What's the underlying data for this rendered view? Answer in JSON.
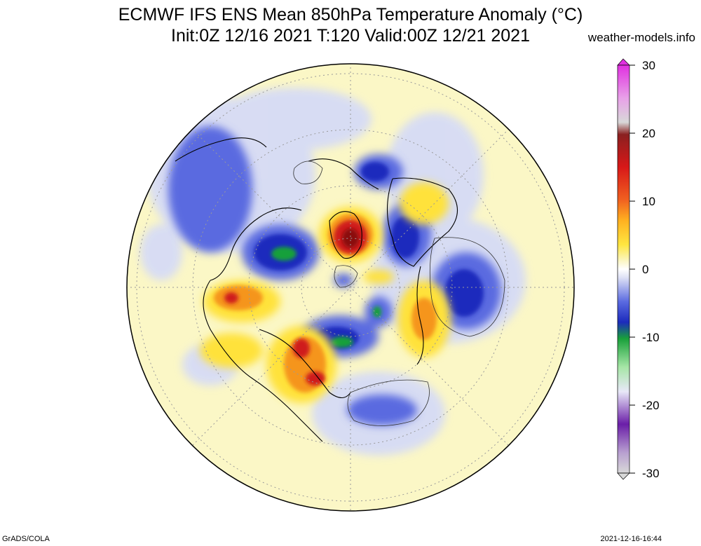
{
  "header": {
    "title_line1": "ECMWF IFS ENS Mean 850hPa Temperature Anomaly (°C)",
    "title_line2": "Init:0Z 12/16 2021  T:120 Valid:00Z 12/21 2021",
    "source": "weather-models.info"
  },
  "footer": {
    "left": "GrADS/COLA",
    "right": "2021-12-16-16:44"
  },
  "colorbar": {
    "labels": [
      "30",
      "20",
      "10",
      "0",
      "-10",
      "-20",
      "-30"
    ],
    "min": -30,
    "max": 30,
    "colors": {
      "very_cold": "#6a1ea8",
      "cold_green": "#1aa33a",
      "cold_blue": "#2030c8",
      "cool": "#c8cdf2",
      "neutral": "#ffffff",
      "warm_light": "#fbf6c4",
      "warm": "#ffd21e",
      "orange": "#f28a1a",
      "hot": "#c81414",
      "very_hot": "#e030e0"
    }
  },
  "map": {
    "projection": "north-polar-stereographic",
    "background_color": "#fbf7c6",
    "outline_color": "#000000"
  }
}
